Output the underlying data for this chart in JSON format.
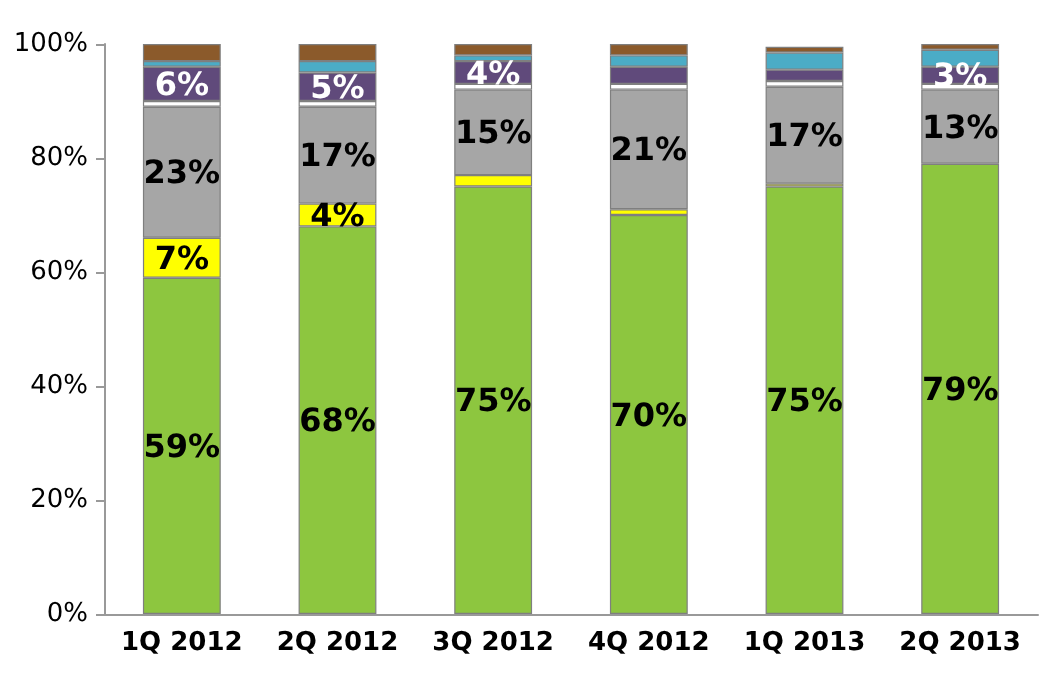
{
  "chart_data": {
    "type": "bar",
    "stacked": true,
    "categories": [
      "1Q 2012",
      "2Q 2012",
      "3Q 2012",
      "4Q 2012",
      "1Q 2013",
      "2Q 2013"
    ],
    "series": [
      {
        "color": "#8dc63f",
        "values": [
          59,
          68,
          75,
          70,
          75,
          79
        ],
        "value_labels": [
          "59%",
          "68%",
          "75%",
          "70%",
          "75%",
          "79%"
        ]
      },
      {
        "color": "#ffff00",
        "values": [
          7,
          4,
          2,
          1,
          0.5,
          null
        ],
        "value_labels": [
          "7%",
          "4%",
          null,
          null,
          null,
          null
        ]
      },
      {
        "color": "#a6a6a6",
        "values": [
          23,
          17,
          15,
          21,
          17,
          13
        ],
        "value_labels": [
          "23%",
          "17%",
          "15%",
          "21%",
          "17%",
          "13%"
        ]
      },
      {
        "color": "#ffffff",
        "values": [
          1,
          1,
          1,
          1,
          1,
          1
        ]
      },
      {
        "color": "#604a7b",
        "values": [
          6,
          5,
          4,
          3,
          2,
          3
        ],
        "value_labels": [
          "6%",
          "5%",
          "4%",
          null,
          null,
          "3%"
        ]
      },
      {
        "color": "#4bacc6",
        "values": [
          1,
          2,
          1,
          2,
          3,
          3
        ]
      },
      {
        "color": "#8b5a2b",
        "values": [
          3,
          3,
          2,
          2,
          1,
          1
        ]
      }
    ],
    "ylim": [
      0,
      100
    ],
    "yticks": [
      {
        "value": 0,
        "label": "0%"
      },
      {
        "value": 20,
        "label": "20%"
      },
      {
        "value": 40,
        "label": "40%"
      },
      {
        "value": 60,
        "label": "60%"
      },
      {
        "value": 80,
        "label": "80%"
      },
      {
        "value": 100,
        "label": "100%"
      }
    ],
    "grid": false
  }
}
